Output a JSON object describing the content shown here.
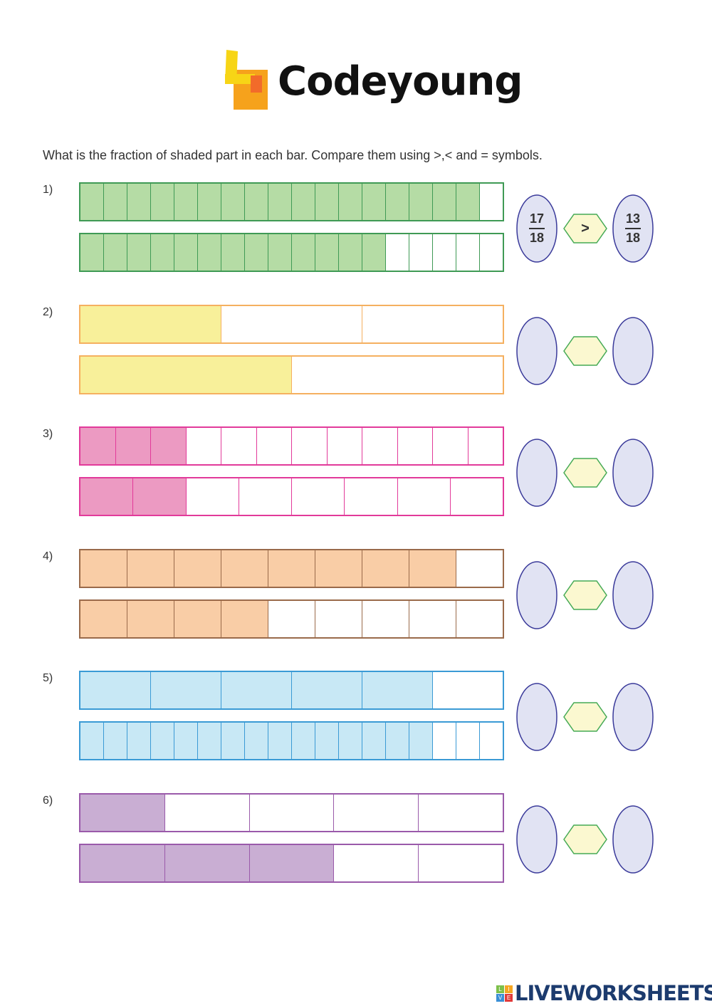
{
  "header": {
    "brand": "Codeyoung",
    "brand_colors": [
      "#f7d516",
      "#f6a21c",
      "#f26b2a"
    ]
  },
  "instruction": "What is the fraction of shaded part in each bar. Compare them using >,< and = symbols.",
  "questions": [
    {
      "label": "1)",
      "fill": "#b5dca5",
      "border": "#3f9a55",
      "bars": [
        {
          "parts": 18,
          "shaded": 17
        },
        {
          "parts": 18,
          "shaded": 13
        }
      ],
      "answer": {
        "left_num": "17",
        "left_den": "18",
        "symbol": ">",
        "right_num": "13",
        "right_den": "18"
      }
    },
    {
      "label": "2)",
      "fill": "#f8f09a",
      "border": "#f5b060",
      "bars": [
        {
          "parts": 3,
          "shaded": 1
        },
        {
          "parts": 2,
          "shaded": 1
        }
      ],
      "answer": {
        "left_num": "",
        "left_den": "",
        "symbol": "",
        "right_num": "",
        "right_den": ""
      }
    },
    {
      "label": "3)",
      "fill": "#ec9ac2",
      "border": "#e23a9a",
      "bars": [
        {
          "parts": 12,
          "shaded": 3
        },
        {
          "parts": 8,
          "shaded": 2
        }
      ],
      "answer": {
        "left_num": "",
        "left_den": "",
        "symbol": "",
        "right_num": "",
        "right_den": ""
      }
    },
    {
      "label": "4)",
      "fill": "#f9cda6",
      "border": "#9a6a4a",
      "bars": [
        {
          "parts": 9,
          "shaded": 8
        },
        {
          "parts": 9,
          "shaded": 4
        }
      ],
      "answer": {
        "left_num": "",
        "left_den": "",
        "symbol": "",
        "right_num": "",
        "right_den": ""
      }
    },
    {
      "label": "5)",
      "fill": "#c8e8f5",
      "border": "#3a9ad5",
      "bars": [
        {
          "parts": 6,
          "shaded": 5
        },
        {
          "parts": 18,
          "shaded": 15
        }
      ],
      "answer": {
        "left_num": "",
        "left_den": "",
        "symbol": "",
        "right_num": "",
        "right_den": ""
      }
    },
    {
      "label": "6)",
      "fill": "#c9aed3",
      "border": "#9a5aaa",
      "bars": [
        {
          "parts": 5,
          "shaded": 1
        },
        {
          "parts": 5,
          "shaded": 3
        }
      ],
      "answer": {
        "left_num": "",
        "left_den": "",
        "symbol": "",
        "right_num": "",
        "right_den": ""
      }
    }
  ],
  "footer": {
    "brand": "LIVEWORKSHEETS",
    "badge_letters": [
      "L",
      "I",
      "V",
      "E"
    ]
  }
}
